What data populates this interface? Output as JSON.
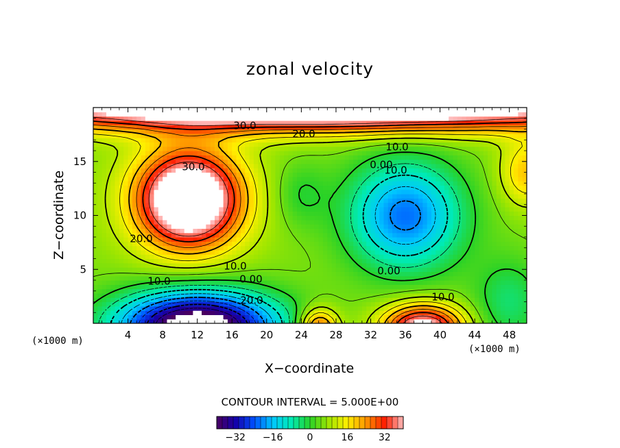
{
  "chart_data": {
    "type": "heatmap",
    "subtype": "filled-contour",
    "title": "zonal velocity",
    "xlabel": "X−coordinate",
    "ylabel": "Z−coordinate",
    "x_unit_label": "(×1000 m)",
    "y_unit_label": "(×1000 m)",
    "xlim": [
      0,
      50
    ],
    "ylim": [
      0,
      20
    ],
    "x_ticks": [
      "4",
      "8",
      "12",
      "16",
      "20",
      "24",
      "28",
      "32",
      "36",
      "40",
      "44",
      "48"
    ],
    "y_ticks": [
      "5",
      "10",
      "15"
    ],
    "contour_interval_text": "CONTOUR INTERVAL = 5.000E+00",
    "contour_interval": 5.0,
    "contour_labels": [
      "30.0",
      "20.0",
      "10.0",
      "30.0",
      "0.00",
      "10.0",
      "20.0",
      "10.0",
      "0.00",
      "0.00",
      "10.0",
      "20.0",
      "10.0"
    ],
    "colorbar": {
      "min": -40,
      "max": 40,
      "tick_labels": [
        "−32",
        "−16",
        "0",
        "16",
        "32"
      ]
    },
    "features": [
      {
        "kind": "jet max",
        "x": 11,
        "z": 11.5,
        "value": 40
      },
      {
        "kind": "upper jet",
        "x": 25,
        "z": 19,
        "value": 40
      },
      {
        "kind": "negative min",
        "x": 12,
        "z": 0.5,
        "value": -38
      },
      {
        "kind": "negative region",
        "x": 36,
        "z": 10,
        "value": -15
      },
      {
        "kind": "bottom max",
        "x": 38,
        "z": 0.5,
        "value": 35
      },
      {
        "kind": "bottom max",
        "x": 26,
        "z": 0.5,
        "value": 25
      }
    ]
  }
}
